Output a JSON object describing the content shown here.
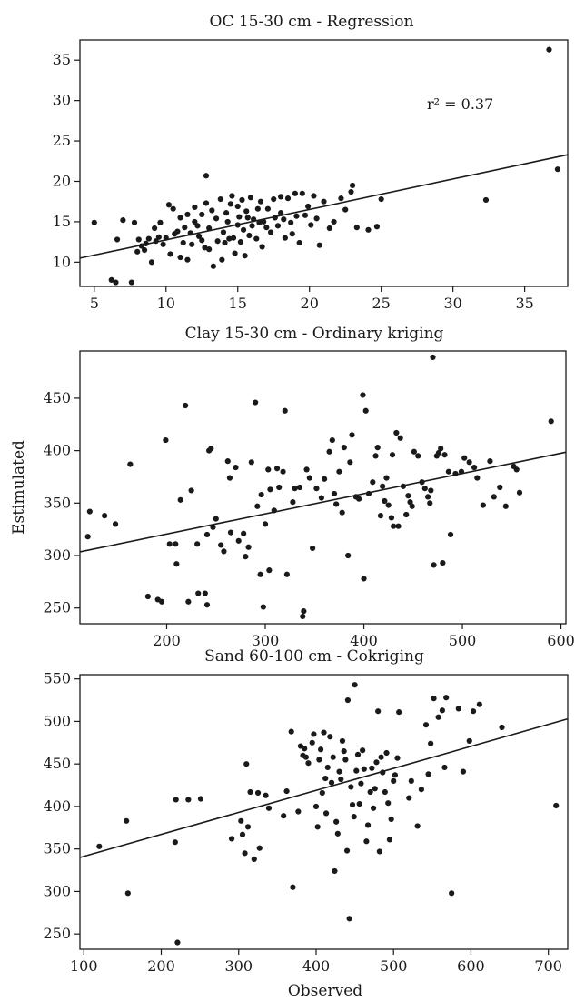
{
  "figure": {
    "ylabel": "Estimulated",
    "xlabel": "Observed"
  },
  "chart_data": [
    {
      "type": "scatter",
      "title": "OC 15-30 cm - Regression",
      "annotation": "r² = 0.37",
      "xlim": [
        4,
        38
      ],
      "ylim": [
        7,
        37.5
      ],
      "xticks": [
        5,
        10,
        15,
        20,
        25,
        30,
        35
      ],
      "yticks": [
        10,
        15,
        20,
        25,
        30,
        35
      ],
      "fit_line": [
        [
          4,
          10.5
        ],
        [
          38,
          23.3
        ]
      ],
      "points": [
        [
          5.0,
          14.9
        ],
        [
          6.2,
          7.8
        ],
        [
          6.5,
          7.5
        ],
        [
          6.6,
          12.8
        ],
        [
          7.0,
          15.2
        ],
        [
          7.6,
          7.5
        ],
        [
          7.8,
          14.9
        ],
        [
          8.0,
          11.3
        ],
        [
          8.1,
          12.8
        ],
        [
          8.3,
          12.0
        ],
        [
          8.5,
          11.5
        ],
        [
          8.6,
          12.3
        ],
        [
          8.8,
          12.9
        ],
        [
          9.0,
          10.0
        ],
        [
          9.2,
          14.2
        ],
        [
          9.3,
          12.6
        ],
        [
          9.5,
          13.1
        ],
        [
          9.6,
          14.9
        ],
        [
          9.8,
          12.2
        ],
        [
          10.0,
          13.0
        ],
        [
          10.2,
          17.1
        ],
        [
          10.3,
          11.0
        ],
        [
          10.5,
          16.6
        ],
        [
          10.6,
          13.5
        ],
        [
          10.8,
          13.8
        ],
        [
          11.0,
          10.6
        ],
        [
          11.0,
          15.5
        ],
        [
          11.2,
          12.4
        ],
        [
          11.3,
          14.3
        ],
        [
          11.5,
          15.9
        ],
        [
          11.5,
          10.3
        ],
        [
          11.7,
          13.6
        ],
        [
          11.8,
          12.2
        ],
        [
          12.0,
          15.0
        ],
        [
          12.0,
          16.8
        ],
        [
          12.2,
          14.5
        ],
        [
          12.3,
          13.2
        ],
        [
          12.5,
          12.7
        ],
        [
          12.5,
          15.9
        ],
        [
          12.7,
          11.8
        ],
        [
          12.8,
          17.3
        ],
        [
          12.8,
          20.7
        ],
        [
          13.0,
          14.2
        ],
        [
          13.0,
          11.6
        ],
        [
          13.2,
          16.4
        ],
        [
          13.3,
          9.5
        ],
        [
          13.5,
          15.4
        ],
        [
          13.6,
          12.6
        ],
        [
          13.8,
          17.8
        ],
        [
          13.9,
          10.3
        ],
        [
          14.0,
          13.7
        ],
        [
          14.1,
          12.4
        ],
        [
          14.2,
          16.1
        ],
        [
          14.3,
          15.0
        ],
        [
          14.4,
          12.9
        ],
        [
          14.5,
          17.2
        ],
        [
          14.6,
          18.2
        ],
        [
          14.7,
          13.0
        ],
        [
          14.8,
          11.1
        ],
        [
          15.0,
          14.6
        ],
        [
          15.0,
          16.9
        ],
        [
          15.1,
          15.6
        ],
        [
          15.2,
          12.5
        ],
        [
          15.3,
          17.7
        ],
        [
          15.4,
          14.0
        ],
        [
          15.5,
          10.8
        ],
        [
          15.6,
          16.3
        ],
        [
          15.7,
          15.5
        ],
        [
          15.8,
          13.3
        ],
        [
          15.9,
          18.0
        ],
        [
          16.0,
          14.5
        ],
        [
          16.1,
          15.3
        ],
        [
          16.3,
          12.9
        ],
        [
          16.4,
          16.6
        ],
        [
          16.5,
          14.9
        ],
        [
          16.6,
          17.5
        ],
        [
          16.7,
          11.9
        ],
        [
          16.8,
          15.0
        ],
        [
          17.0,
          14.3
        ],
        [
          17.1,
          16.6
        ],
        [
          17.3,
          13.7
        ],
        [
          17.5,
          17.8
        ],
        [
          17.6,
          15.5
        ],
        [
          17.8,
          14.5
        ],
        [
          18.0,
          18.1
        ],
        [
          18.0,
          16.1
        ],
        [
          18.2,
          15.3
        ],
        [
          18.3,
          13.0
        ],
        [
          18.5,
          17.9
        ],
        [
          18.7,
          14.9
        ],
        [
          18.8,
          13.5
        ],
        [
          19.0,
          18.5
        ],
        [
          19.1,
          15.7
        ],
        [
          19.3,
          12.4
        ],
        [
          19.5,
          18.5
        ],
        [
          19.7,
          15.8
        ],
        [
          19.9,
          16.9
        ],
        [
          20.1,
          14.6
        ],
        [
          20.3,
          18.2
        ],
        [
          20.5,
          15.4
        ],
        [
          20.7,
          12.1
        ],
        [
          21.0,
          17.5
        ],
        [
          21.4,
          14.2
        ],
        [
          21.7,
          15.0
        ],
        [
          22.2,
          17.9
        ],
        [
          22.5,
          16.5
        ],
        [
          22.9,
          18.7
        ],
        [
          23.0,
          19.5
        ],
        [
          23.3,
          14.3
        ],
        [
          24.1,
          14.0
        ],
        [
          24.7,
          14.4
        ],
        [
          25.0,
          17.8
        ],
        [
          32.3,
          17.7
        ],
        [
          36.7,
          36.3
        ],
        [
          37.3,
          21.5
        ]
      ]
    },
    {
      "type": "scatter",
      "title": "Clay 15-30 cm - Ordinary kriging",
      "xlim": [
        112,
        605
      ],
      "ylim": [
        235,
        495
      ],
      "xticks": [
        200,
        300,
        400,
        500,
        600
      ],
      "yticks": [
        250,
        300,
        350,
        400,
        450
      ],
      "fit_line": [
        [
          112,
          303.5
        ],
        [
          605,
          398.5
        ]
      ],
      "points": [
        [
          120,
          318
        ],
        [
          122,
          342
        ],
        [
          137,
          338
        ],
        [
          148,
          330
        ],
        [
          163,
          387
        ],
        [
          181,
          261
        ],
        [
          191,
          258
        ],
        [
          195,
          256
        ],
        [
          199,
          410
        ],
        [
          203,
          311
        ],
        [
          209,
          311
        ],
        [
          210,
          292
        ],
        [
          214,
          353
        ],
        [
          219,
          443
        ],
        [
          222,
          256
        ],
        [
          225,
          362
        ],
        [
          231,
          311
        ],
        [
          232,
          264
        ],
        [
          239,
          264
        ],
        [
          241,
          253
        ],
        [
          241,
          320
        ],
        [
          243,
          400
        ],
        [
          245,
          402
        ],
        [
          247,
          327
        ],
        [
          250,
          335
        ],
        [
          255,
          310
        ],
        [
          258,
          304
        ],
        [
          262,
          390
        ],
        [
          264,
          374
        ],
        [
          265,
          322
        ],
        [
          270,
          384
        ],
        [
          273,
          314
        ],
        [
          278,
          321
        ],
        [
          280,
          299
        ],
        [
          283,
          308
        ],
        [
          286,
          389
        ],
        [
          290,
          446
        ],
        [
          292,
          347
        ],
        [
          295,
          282
        ],
        [
          296,
          358
        ],
        [
          298,
          251
        ],
        [
          300,
          330
        ],
        [
          303,
          382
        ],
        [
          304,
          286
        ],
        [
          305,
          363
        ],
        [
          309,
          343
        ],
        [
          312,
          383
        ],
        [
          314,
          365
        ],
        [
          318,
          380
        ],
        [
          320,
          438
        ],
        [
          322,
          282
        ],
        [
          328,
          351
        ],
        [
          330,
          364
        ],
        [
          335,
          365
        ],
        [
          338,
          242
        ],
        [
          339,
          247
        ],
        [
          342,
          382
        ],
        [
          345,
          374
        ],
        [
          348,
          307
        ],
        [
          352,
          364
        ],
        [
          357,
          355
        ],
        [
          360,
          373
        ],
        [
          365,
          399
        ],
        [
          368,
          410
        ],
        [
          370,
          359
        ],
        [
          372,
          349
        ],
        [
          375,
          380
        ],
        [
          378,
          341
        ],
        [
          380,
          403
        ],
        [
          384,
          300
        ],
        [
          386,
          389
        ],
        [
          388,
          415
        ],
        [
          392,
          356
        ],
        [
          395,
          354
        ],
        [
          399,
          453
        ],
        [
          400,
          278
        ],
        [
          402,
          438
        ],
        [
          405,
          359
        ],
        [
          409,
          370
        ],
        [
          412,
          395
        ],
        [
          414,
          403
        ],
        [
          417,
          338
        ],
        [
          419,
          366
        ],
        [
          421,
          352
        ],
        [
          423,
          374
        ],
        [
          425,
          348
        ],
        [
          428,
          336
        ],
        [
          429,
          396
        ],
        [
          430,
          328
        ],
        [
          433,
          417
        ],
        [
          435,
          328
        ],
        [
          437,
          412
        ],
        [
          440,
          366
        ],
        [
          443,
          339
        ],
        [
          445,
          357
        ],
        [
          447,
          351
        ],
        [
          449,
          347
        ],
        [
          451,
          399
        ],
        [
          455,
          395
        ],
        [
          459,
          370
        ],
        [
          462,
          364
        ],
        [
          465,
          356
        ],
        [
          467,
          350
        ],
        [
          468,
          362
        ],
        [
          470,
          489
        ],
        [
          471,
          291
        ],
        [
          474,
          395
        ],
        [
          476,
          398
        ],
        [
          478,
          402
        ],
        [
          480,
          293
        ],
        [
          482,
          396
        ],
        [
          486,
          380
        ],
        [
          488,
          320
        ],
        [
          493,
          378
        ],
        [
          499,
          380
        ],
        [
          502,
          393
        ],
        [
          507,
          389
        ],
        [
          512,
          384
        ],
        [
          515,
          374
        ],
        [
          521,
          348
        ],
        [
          528,
          390
        ],
        [
          532,
          356
        ],
        [
          538,
          365
        ],
        [
          544,
          347
        ],
        [
          552,
          385
        ],
        [
          555,
          382
        ],
        [
          558,
          360
        ],
        [
          590,
          428
        ]
      ]
    },
    {
      "type": "scatter",
      "title": "Sand 60-100 cm - Cokriging",
      "xlim": [
        95,
        725
      ],
      "ylim": [
        232,
        555
      ],
      "xticks": [
        100,
        200,
        300,
        400,
        500,
        600,
        700
      ],
      "yticks": [
        250,
        300,
        350,
        400,
        450,
        500,
        550
      ],
      "fit_line": [
        [
          95,
          340
        ],
        [
          725,
          503
        ]
      ],
      "points": [
        [
          120,
          353
        ],
        [
          155,
          383
        ],
        [
          157,
          298
        ],
        [
          218,
          358
        ],
        [
          219,
          408
        ],
        [
          221,
          240
        ],
        [
          235,
          408
        ],
        [
          251,
          409
        ],
        [
          291,
          362
        ],
        [
          303,
          383
        ],
        [
          305,
          367
        ],
        [
          308,
          345
        ],
        [
          310,
          450
        ],
        [
          312,
          376
        ],
        [
          315,
          417
        ],
        [
          320,
          338
        ],
        [
          325,
          416
        ],
        [
          327,
          351
        ],
        [
          335,
          413
        ],
        [
          339,
          398
        ],
        [
          358,
          389
        ],
        [
          362,
          418
        ],
        [
          368,
          488
        ],
        [
          370,
          305
        ],
        [
          377,
          394
        ],
        [
          380,
          471
        ],
        [
          383,
          460
        ],
        [
          385,
          468
        ],
        [
          387,
          458
        ],
        [
          390,
          451
        ],
        [
          395,
          475
        ],
        [
          397,
          485
        ],
        [
          400,
          400
        ],
        [
          402,
          376
        ],
        [
          404,
          455
        ],
        [
          406,
          467
        ],
        [
          408,
          416
        ],
        [
          410,
          487
        ],
        [
          412,
          433
        ],
        [
          413,
          392
        ],
        [
          415,
          446
        ],
        [
          418,
          482
        ],
        [
          420,
          428
        ],
        [
          422,
          458
        ],
        [
          424,
          324
        ],
        [
          426,
          382
        ],
        [
          428,
          368
        ],
        [
          430,
          441
        ],
        [
          432,
          432
        ],
        [
          434,
          477
        ],
        [
          436,
          465
        ],
        [
          438,
          455
        ],
        [
          440,
          348
        ],
        [
          441,
          525
        ],
        [
          443,
          268
        ],
        [
          445,
          423
        ],
        [
          447,
          402
        ],
        [
          449,
          388
        ],
        [
          450,
          543
        ],
        [
          452,
          442
        ],
        [
          454,
          461
        ],
        [
          456,
          403
        ],
        [
          458,
          427
        ],
        [
          460,
          466
        ],
        [
          462,
          444
        ],
        [
          465,
          359
        ],
        [
          467,
          378
        ],
        [
          470,
          417
        ],
        [
          472,
          445
        ],
        [
          474,
          398
        ],
        [
          476,
          421
        ],
        [
          478,
          452
        ],
        [
          480,
          512
        ],
        [
          482,
          347
        ],
        [
          484,
          458
        ],
        [
          486,
          440
        ],
        [
          489,
          417
        ],
        [
          491,
          463
        ],
        [
          493,
          404
        ],
        [
          495,
          361
        ],
        [
          497,
          385
        ],
        [
          500,
          430
        ],
        [
          502,
          437
        ],
        [
          505,
          457
        ],
        [
          507,
          511
        ],
        [
          520,
          410
        ],
        [
          523,
          430
        ],
        [
          531,
          377
        ],
        [
          536,
          420
        ],
        [
          542,
          496
        ],
        [
          545,
          438
        ],
        [
          548,
          474
        ],
        [
          552,
          527
        ],
        [
          558,
          505
        ],
        [
          563,
          513
        ],
        [
          566,
          446
        ],
        [
          568,
          528
        ],
        [
          575,
          298
        ],
        [
          584,
          515
        ],
        [
          590,
          441
        ],
        [
          598,
          477
        ],
        [
          603,
          512
        ],
        [
          611,
          520
        ],
        [
          640,
          493
        ],
        [
          710,
          401
        ]
      ]
    }
  ]
}
